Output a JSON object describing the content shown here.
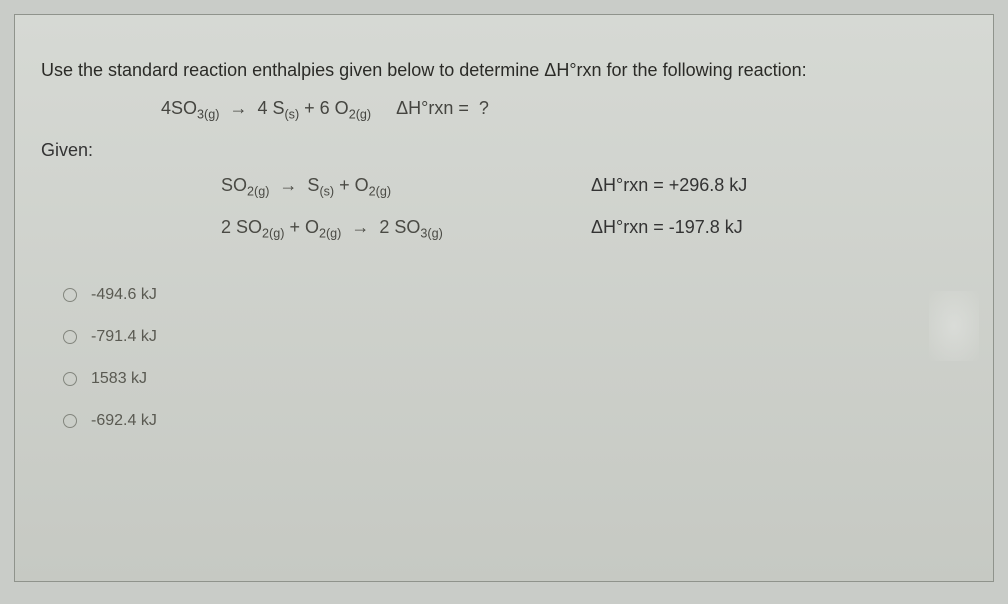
{
  "question": "Use the standard reaction enthalpies given below to determine ΔH°rxn for the following reaction:",
  "target_equation": "4SO₃(g)  →  4 S(s) + 6 O₂(g)     ΔH°rxn =  ?",
  "given_label": "Given:",
  "given": [
    {
      "eq": "SO₂(g)  →  S(s) + O₂(g)",
      "dh": "ΔH°rxn = +296.8 kJ"
    },
    {
      "eq": "2 SO₂(g) + O₂(g)  →  2 SO₃(g)",
      "dh": "ΔH°rxn = -197.8 kJ"
    }
  ],
  "options": [
    {
      "label": "-494.6 kJ"
    },
    {
      "label": "-791.4 kJ"
    },
    {
      "label": "1583 kJ"
    },
    {
      "label": "-692.4 kJ"
    }
  ],
  "colors": {
    "frame_border": "#8f938c",
    "bg": "#c9ccc8",
    "text": "#3a3a36",
    "radio_border": "#83867e"
  }
}
